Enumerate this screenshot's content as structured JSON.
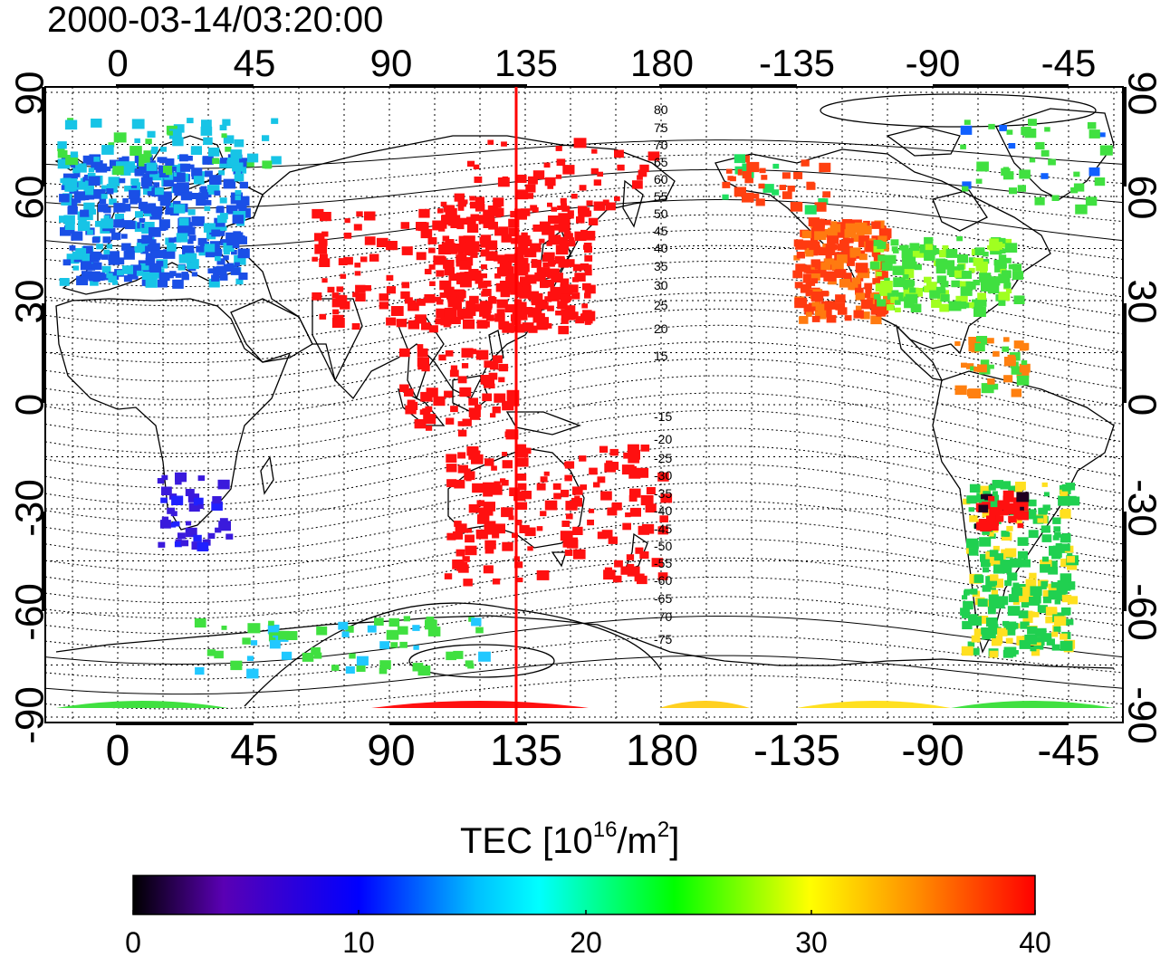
{
  "timestamp": "2000-03-14/03:20:00",
  "colorbar": {
    "title_prefix": "TEC  [10",
    "title_exp1": "16",
    "title_mid": "/m",
    "title_exp2": "2",
    "title_suffix": "]",
    "ticks": [
      "0",
      "10",
      "20",
      "30",
      "40"
    ],
    "range": [
      0,
      40
    ],
    "colors": [
      "#000000",
      "#5a00b4",
      "#0000ff",
      "#00ffff",
      "#00ff00",
      "#ffff00",
      "#ff8c00",
      "#ff0000"
    ]
  },
  "map": {
    "lon_ticks": [
      "0",
      "45",
      "90",
      "135",
      "180",
      "-135",
      "-90",
      "-45"
    ],
    "lat_ticks": [
      "90",
      "60",
      "30",
      "0",
      "-30",
      "-60",
      "-90"
    ],
    "terminator_longitude": 132,
    "isoline_labels": [
      "80",
      "75",
      "70",
      "65",
      "60",
      "55",
      "50",
      "45",
      "40",
      "35",
      "30",
      "25",
      "20",
      "15",
      "-15",
      "-20",
      "-25",
      "-30",
      "-35",
      "-40",
      "-45",
      "-50",
      "-55",
      "-60",
      "-65",
      "-70",
      "-75"
    ],
    "region_colors": {
      "europe": "#1a4fe6",
      "europe_edge": "#17c4e6",
      "japan_asia": "#ff1010",
      "south_asia": "#ff1010",
      "north_america": "#ff3a10",
      "north_america_east": "#40e040",
      "south_america": "#20d050",
      "south_africa": "#3a1adc",
      "antarctica": "#40e040"
    }
  }
}
